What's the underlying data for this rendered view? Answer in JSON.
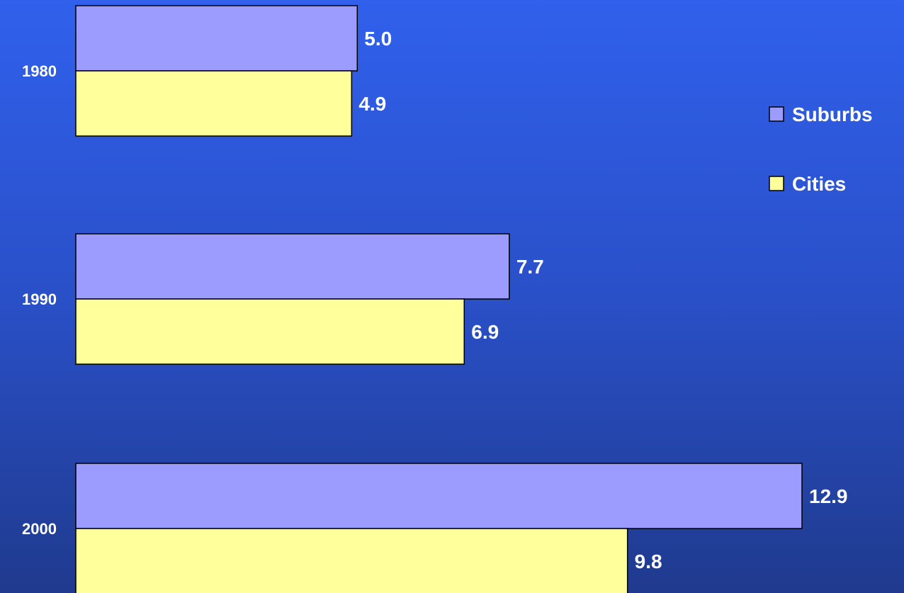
{
  "chart_data": {
    "type": "bar",
    "orientation": "horizontal",
    "categories": [
      "1980",
      "1990",
      "2000"
    ],
    "series": [
      {
        "name": "Suburbs",
        "values": [
          5.0,
          7.7,
          12.9
        ],
        "color": "#9c9cff"
      },
      {
        "name": "Cities",
        "values": [
          4.9,
          6.9,
          9.8
        ],
        "color": "#ffff9c"
      }
    ],
    "value_labels": {
      "Suburbs": [
        "5.0",
        "7.7",
        "12.9"
      ],
      "Cities": [
        "4.9",
        "6.9",
        "9.8"
      ]
    },
    "xlim": [
      0,
      12.9
    ],
    "grid": false,
    "legend_position": "right",
    "title": "",
    "xlabel": "",
    "ylabel": ""
  }
}
